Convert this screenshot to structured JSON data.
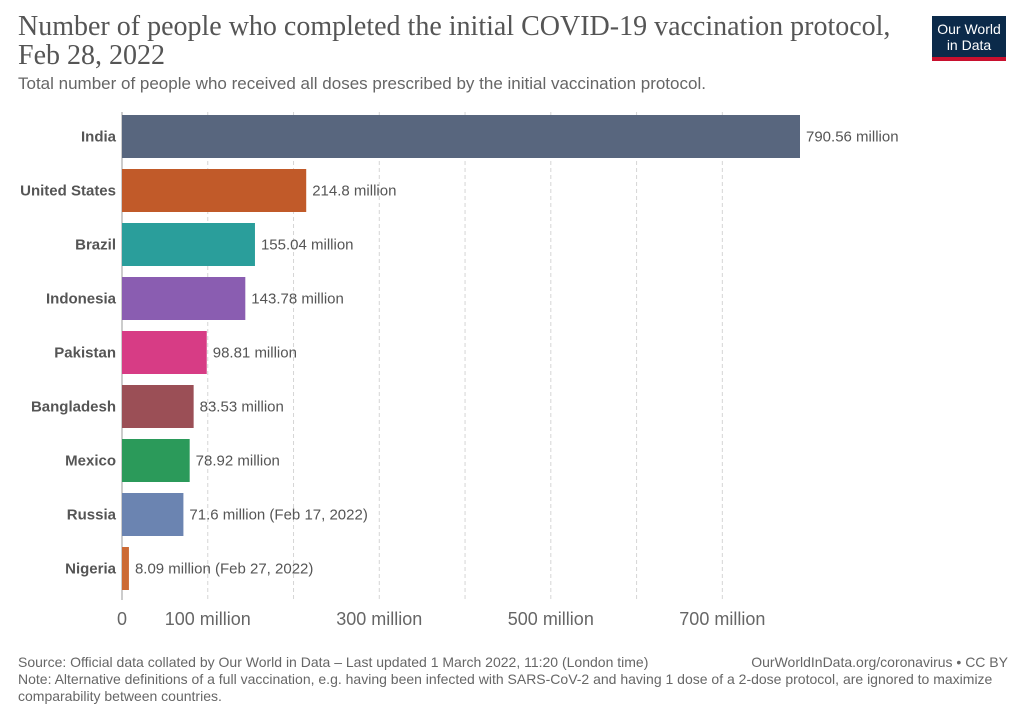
{
  "header": {
    "title": "Number of people who completed the initial COVID-19 vaccination protocol, Feb 28, 2022",
    "subtitle": "Total number of people who received all doses prescribed by the initial vaccination protocol.",
    "logo_line1": "Our World",
    "logo_line2": "in Data"
  },
  "footer": {
    "source": "Source: Official data collated by Our World in Data – Last updated 1 March 2022, 11:20 (London time)",
    "link": "OurWorldInData.org/coronavirus • CC BY",
    "note": "Note: Alternative definitions of a full vaccination, e.g. having been infected with SARS-CoV-2 and having 1 dose of a 2-dose protocol, are ignored to maximize comparability between countries."
  },
  "chart_data": {
    "type": "bar",
    "orientation": "horizontal",
    "unit": "million",
    "categories": [
      "India",
      "United States",
      "Brazil",
      "Indonesia",
      "Pakistan",
      "Bangladesh",
      "Mexico",
      "Russia",
      "Nigeria"
    ],
    "values": [
      790.56,
      214.8,
      155.04,
      143.78,
      98.81,
      83.53,
      78.92,
      71.6,
      8.09
    ],
    "labels": [
      "790.56 million",
      "214.8 million",
      "155.04 million",
      "143.78 million",
      "98.81 million",
      "83.53 million",
      "78.92 million",
      "71.6 million (Feb 17, 2022)",
      "8.09 million (Feb 27, 2022)"
    ],
    "colors": [
      "#58667e",
      "#c15a29",
      "#2a9e9b",
      "#8a5db1",
      "#d73c85",
      "#9b4f56",
      "#2b9a5a",
      "#6b84b1",
      "#cc6a34"
    ],
    "xlim": [
      0,
      800
    ],
    "x_ticks": [
      0,
      100,
      300,
      500,
      700
    ],
    "x_tick_labels": [
      "0",
      "100 million",
      "300 million",
      "500 million",
      "700 million"
    ],
    "gridlines": [
      100,
      200,
      300,
      400,
      500,
      600,
      700
    ],
    "grid": true
  }
}
